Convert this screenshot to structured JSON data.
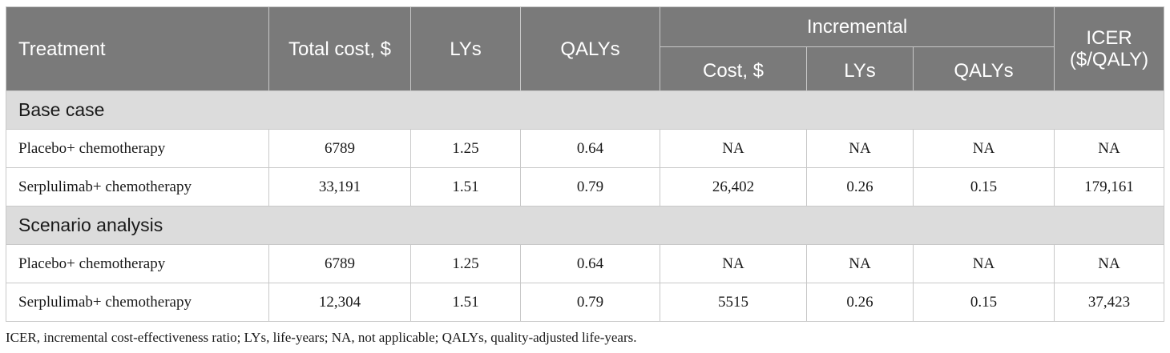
{
  "table": {
    "headers": {
      "treatment": "Treatment",
      "total_cost": "Total cost, $",
      "lys": "LYs",
      "qalys": "QALYs",
      "incremental": "Incremental",
      "inc_cost": "Cost, $",
      "inc_lys": "LYs",
      "inc_qalys": "QALYs",
      "icer": "ICER ($/QALY)"
    },
    "sections": [
      {
        "title": "Base case",
        "rows": [
          {
            "treatment": "Placebo+ chemotherapy",
            "total_cost": "6789",
            "lys": "1.25",
            "qalys": "0.64",
            "inc_cost": "NA",
            "inc_lys": "NA",
            "inc_qalys": "NA",
            "icer": "NA"
          },
          {
            "treatment": "Serplulimab+ chemotherapy",
            "total_cost": "33,191",
            "lys": "1.51",
            "qalys": "0.79",
            "inc_cost": "26,402",
            "inc_lys": "0.26",
            "inc_qalys": "0.15",
            "icer": "179,161"
          }
        ]
      },
      {
        "title": "Scenario analysis",
        "rows": [
          {
            "treatment": "Placebo+ chemotherapy",
            "total_cost": "6789",
            "lys": "1.25",
            "qalys": "0.64",
            "inc_cost": "NA",
            "inc_lys": "NA",
            "inc_qalys": "NA",
            "icer": "NA"
          },
          {
            "treatment": "Serplulimab+ chemotherapy",
            "total_cost": "12,304",
            "lys": "1.51",
            "qalys": "0.79",
            "inc_cost": "5515",
            "inc_lys": "0.26",
            "inc_qalys": "0.15",
            "icer": "37,423"
          }
        ]
      }
    ]
  },
  "footnote": "ICER, incremental cost-effectiveness ratio; LYs, life-years; NA, not applicable; QALYs, quality-adjusted life-years.",
  "colors": {
    "header_bg": "#7a7a7a",
    "section_bg": "#dcdcdc",
    "border": "#c8c8c8"
  }
}
